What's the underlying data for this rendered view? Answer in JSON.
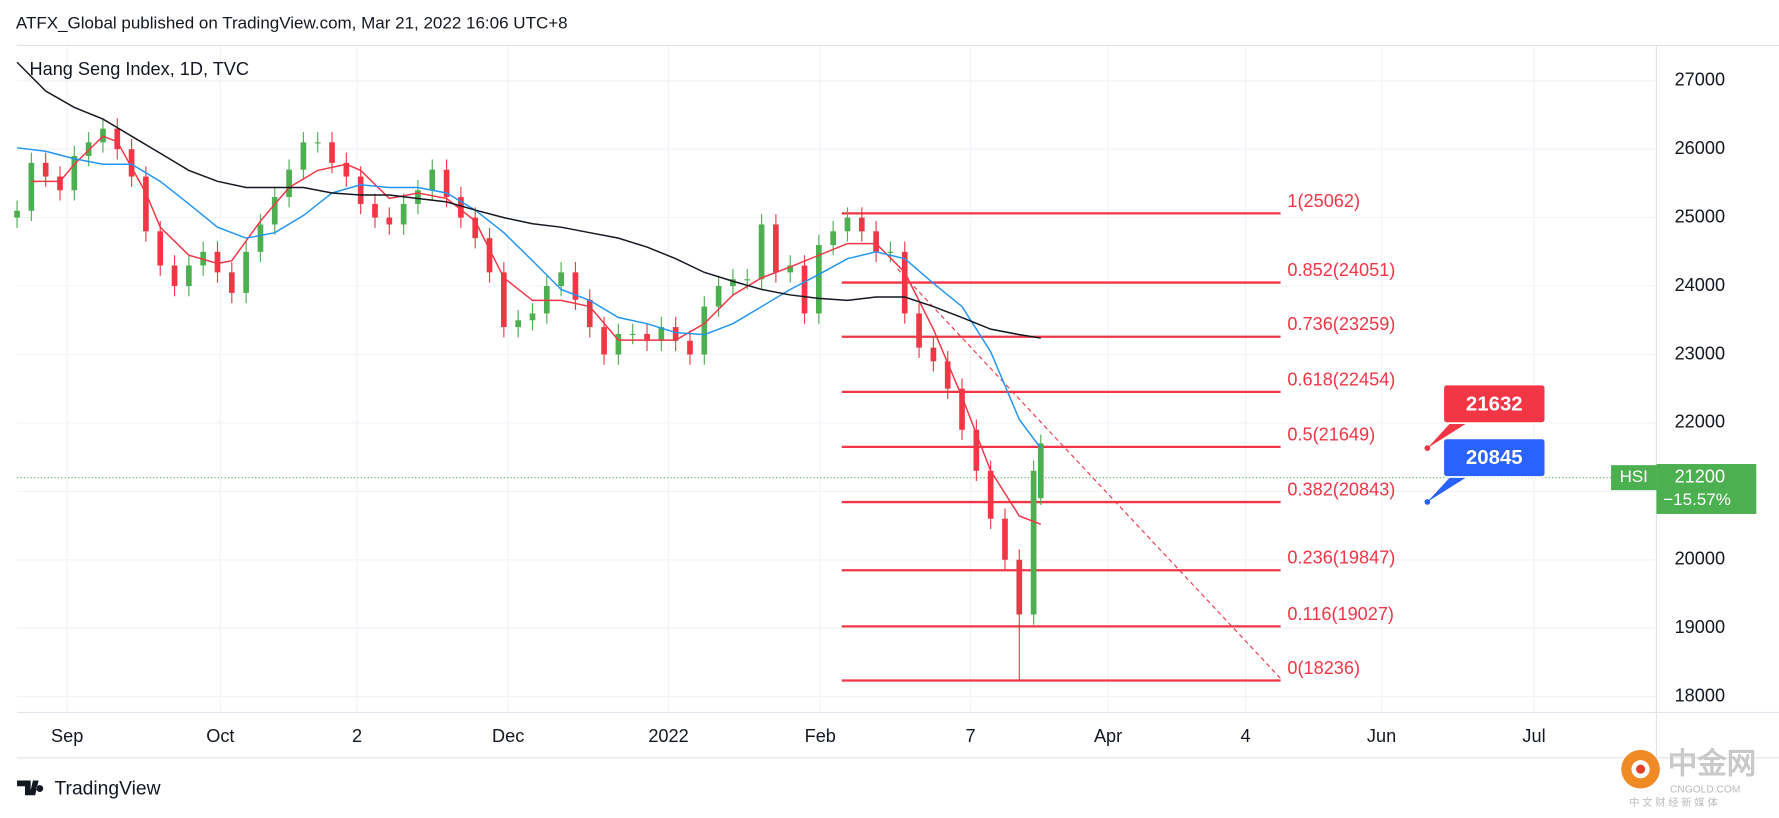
{
  "header": {
    "published": "ATFX_Global published on TradingView.com, Mar 21, 2022 16:06 UTC+8",
    "brand": "TradingView"
  },
  "watermark": {
    "name": "中金网",
    "site": "CNGOLD.COM",
    "slogan": "中 文 财 经 新 媒 体"
  },
  "chart_data": {
    "type": "candlestick",
    "title": "Hang Seng Index, 1D, TVC",
    "up_color": "#4caf50",
    "down_color": "#f23645",
    "xlim": [
      0,
      229
    ],
    "xticks": [
      {
        "value": 7,
        "label": "Sep"
      },
      {
        "value": 28.4,
        "label": "Oct"
      },
      {
        "value": 47.5,
        "label": "2"
      },
      {
        "value": 68.6,
        "label": "Dec"
      },
      {
        "value": 91,
        "label": "2022"
      },
      {
        "value": 112.2,
        "label": "Feb"
      },
      {
        "value": 133.2,
        "label": "7"
      },
      {
        "value": 152.4,
        "label": "Apr"
      },
      {
        "value": 171.6,
        "label": "4"
      },
      {
        "value": 190.6,
        "label": "Jun"
      },
      {
        "value": 211.9,
        "label": "Jul"
      }
    ],
    "ylim": [
      17768,
      27517
    ],
    "yticks": [
      18000,
      19000,
      20000,
      21000,
      22000,
      23000,
      24000,
      25000,
      26000,
      27000
    ],
    "grid": true,
    "x": [
      0,
      2,
      4,
      6,
      8,
      10,
      12,
      14,
      16,
      18,
      20,
      22,
      24,
      26,
      28,
      30,
      32,
      34,
      36,
      38,
      40,
      42,
      44,
      46,
      48,
      50,
      52,
      54,
      56,
      58,
      60,
      62,
      64,
      66,
      68,
      70,
      72,
      74,
      76,
      78,
      80,
      82,
      84,
      86,
      88,
      90,
      92,
      94,
      96,
      98,
      100,
      102,
      104,
      106,
      108,
      110,
      112,
      114,
      116,
      118,
      120,
      122,
      124,
      126,
      128,
      130,
      132,
      134,
      136,
      138,
      140,
      142,
      143
    ],
    "open": [
      25000,
      25100,
      25800,
      25600,
      25400,
      25900,
      26100,
      26300,
      26000,
      25600,
      24800,
      24300,
      24000,
      24300,
      24500,
      24200,
      23900,
      24500,
      24900,
      25300,
      25700,
      26100,
      26100,
      25800,
      25600,
      25200,
      25000,
      24900,
      25200,
      25400,
      25700,
      25300,
      25000,
      24700,
      24200,
      23400,
      23500,
      23600,
      24000,
      24200,
      23800,
      23400,
      23000,
      23300,
      23300,
      23200,
      23400,
      23200,
      23000,
      23700,
      24000,
      24100,
      24100,
      24900,
      24200,
      24300,
      23600,
      24600,
      24800,
      25000,
      24800,
      24500,
      24500,
      23600,
      23100,
      22900,
      22500,
      21900,
      21300,
      20600,
      20000,
      19200,
      20900
    ],
    "high": [
      25250,
      25950,
      25950,
      25750,
      26050,
      26250,
      26450,
      26450,
      26150,
      25750,
      24950,
      24450,
      24450,
      24650,
      24650,
      24350,
      24650,
      25050,
      25450,
      25850,
      26250,
      26250,
      26250,
      25950,
      25750,
      25350,
      25150,
      25350,
      25550,
      25850,
      25850,
      25450,
      25150,
      24850,
      24350,
      23650,
      23750,
      24150,
      24350,
      24350,
      23950,
      23550,
      23450,
      23450,
      23450,
      23550,
      23550,
      23350,
      23850,
      24150,
      24250,
      24250,
      25050,
      25050,
      24450,
      24450,
      24750,
      24950,
      25150,
      25150,
      24950,
      24650,
      24650,
      23750,
      23250,
      23050,
      22650,
      22050,
      21450,
      20750,
      20150,
      21450,
      21830
    ],
    "low": [
      24850,
      24950,
      25450,
      25250,
      25250,
      25750,
      25950,
      25850,
      25450,
      24650,
      24150,
      23850,
      23850,
      24150,
      24050,
      23750,
      23750,
      24350,
      24750,
      25150,
      25550,
      25950,
      25650,
      25450,
      25050,
      24850,
      24750,
      24750,
      25050,
      25250,
      25150,
      24850,
      24550,
      24050,
      23250,
      23250,
      23350,
      23450,
      23850,
      23650,
      23250,
      22850,
      22850,
      23150,
      23050,
      23050,
      23050,
      22850,
      22850,
      23550,
      23850,
      23950,
      23950,
      24050,
      24050,
      23450,
      23450,
      24450,
      24650,
      24650,
      24350,
      24350,
      23450,
      22950,
      22750,
      22350,
      21750,
      21150,
      20450,
      19850,
      18236,
      19050,
      20800
    ],
    "close": [
      25100,
      25800,
      25600,
      25400,
      25900,
      26100,
      26300,
      26000,
      25600,
      24800,
      24300,
      24000,
      24300,
      24500,
      24200,
      23900,
      24500,
      24900,
      25300,
      25700,
      26100,
      26100,
      25800,
      25600,
      25200,
      25000,
      24900,
      25200,
      25400,
      25700,
      25300,
      25000,
      24700,
      24200,
      23400,
      23500,
      23600,
      24000,
      24200,
      23800,
      23400,
      23000,
      23300,
      23300,
      23200,
      23400,
      23200,
      23000,
      23700,
      24000,
      24100,
      24100,
      24900,
      24200,
      24300,
      23600,
      24600,
      24800,
      25000,
      24800,
      24500,
      24500,
      23600,
      23100,
      22900,
      22500,
      21900,
      21300,
      20600,
      20000,
      19200,
      21300,
      21700
    ],
    "moving_averages": [
      {
        "color": "#f23645",
        "x": [
          2,
          6,
          8,
          12,
          14,
          18,
          20,
          24,
          28,
          30,
          34,
          38,
          42,
          46,
          48,
          52,
          56,
          60,
          64,
          68,
          72,
          76,
          80,
          84,
          88,
          92,
          96,
          100,
          104,
          108,
          112,
          116,
          120,
          124,
          128,
          132,
          136,
          140,
          143
        ],
        "values": [
          25530,
          25530,
          25780,
          26190,
          26110,
          25360,
          24860,
          24450,
          24330,
          24370,
          24950,
          25440,
          25690,
          25780,
          25690,
          25280,
          25360,
          25280,
          24950,
          24120,
          23790,
          23790,
          23700,
          23210,
          23210,
          23210,
          23450,
          23870,
          24120,
          24280,
          24450,
          24620,
          24620,
          24200,
          23370,
          22380,
          21300,
          20640,
          20520
        ]
      },
      {
        "color": "#2196f3",
        "x": [
          0,
          4,
          8,
          12,
          16,
          20,
          24,
          28,
          32,
          36,
          40,
          44,
          48,
          52,
          56,
          60,
          64,
          68,
          72,
          76,
          80,
          84,
          88,
          92,
          96,
          100,
          104,
          108,
          112,
          116,
          120,
          124,
          128,
          132,
          136,
          140,
          143
        ],
        "values": [
          26020,
          25970,
          25860,
          25780,
          25780,
          25530,
          25200,
          24860,
          24700,
          24780,
          25030,
          25360,
          25480,
          25440,
          25440,
          25360,
          25110,
          24780,
          24370,
          23950,
          23790,
          23540,
          23450,
          23320,
          23290,
          23450,
          23700,
          23950,
          24170,
          24400,
          24500,
          24400,
          24040,
          23700,
          23040,
          22050,
          21630
        ]
      },
      {
        "color": "#131722",
        "x": [
          0,
          4,
          8,
          12,
          16,
          20,
          24,
          28,
          32,
          36,
          40,
          44,
          48,
          52,
          56,
          60,
          64,
          68,
          72,
          76,
          80,
          84,
          88,
          92,
          96,
          100,
          104,
          108,
          112,
          116,
          120,
          124,
          128,
          132,
          136,
          140,
          143
        ],
        "values": [
          27270,
          26850,
          26610,
          26440,
          26190,
          25940,
          25690,
          25530,
          25440,
          25440,
          25440,
          25360,
          25330,
          25330,
          25280,
          25230,
          25110,
          25000,
          24910,
          24860,
          24780,
          24700,
          24570,
          24400,
          24200,
          24070,
          23950,
          23870,
          23820,
          23790,
          23840,
          23840,
          23700,
          23540,
          23370,
          23290,
          23240
        ]
      }
    ],
    "fibonacci": {
      "color": "#f23645",
      "x": [
        115.2,
        176.5
      ],
      "levels": [
        {
          "value": 25062,
          "label": "1(25062)"
        },
        {
          "value": 24051,
          "label": "0.852(24051)"
        },
        {
          "value": 23259,
          "label": "0.736(23259)"
        },
        {
          "value": 22454,
          "label": "0.618(22454)"
        },
        {
          "value": 21649,
          "label": "0.5(21649)"
        },
        {
          "value": 20843,
          "label": "0.382(20843)"
        },
        {
          "value": 19847,
          "label": "0.236(19847)"
        },
        {
          "value": 19027,
          "label": "0.116(19027)"
        },
        {
          "value": 18236,
          "label": "0(18236)"
        }
      ]
    },
    "trendline": {
      "color": "#f23645",
      "x": [
        123,
        176.5
      ],
      "values": [
        24250,
        18265
      ]
    },
    "callouts": [
      {
        "value": 21632,
        "color": "#f23645",
        "x": 197
      },
      {
        "value": 20845,
        "color": "#2962ff",
        "x": 197
      }
    ],
    "last_price": {
      "symbol": "HSI",
      "value": 21200,
      "change": "−15.57%",
      "color": "#4caf50"
    }
  }
}
